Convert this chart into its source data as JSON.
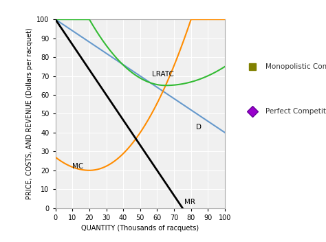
{
  "xlim": [
    0,
    100
  ],
  "ylim": [
    0,
    100
  ],
  "xlabel": "QUANTITY (Thousands of racquets)",
  "ylabel": "PRICE, COSTS, AND REVENUE (Dollars per racquet)",
  "xticks": [
    0,
    10,
    20,
    30,
    40,
    50,
    60,
    70,
    80,
    90,
    100
  ],
  "yticks": [
    0,
    10,
    20,
    30,
    40,
    50,
    60,
    70,
    80,
    90,
    100
  ],
  "bg_color": "#ffffff",
  "plot_bg_color": "#f0f0f0",
  "grid_color": "#ffffff",
  "D_label": "D",
  "MR_label": "MR",
  "MC_label": "MC",
  "LRATC_label": "LRATC",
  "mono_label": "Monopolistic Competition Outcome",
  "perf_label": "Perfect Competition Outcome",
  "mono_marker_color": "#808000",
  "perf_marker_color": "#9900cc",
  "line_color_D": "#6699cc",
  "line_color_MR": "#000000",
  "line_color_MC": "#ff8c00",
  "line_color_LRATC": "#33bb33",
  "D_x0": 0,
  "D_y0": 100,
  "D_x1": 100,
  "D_y1": 40,
  "MR_x0": 0,
  "MR_y0": 100,
  "MR_x1": 75,
  "MR_y1": 0,
  "MC_min_x": 20,
  "MC_min_y": 20,
  "MC_start_y": 27,
  "LRATC_min_x": 65,
  "LRATC_min_y": 65,
  "LRATC_start_x": 20
}
